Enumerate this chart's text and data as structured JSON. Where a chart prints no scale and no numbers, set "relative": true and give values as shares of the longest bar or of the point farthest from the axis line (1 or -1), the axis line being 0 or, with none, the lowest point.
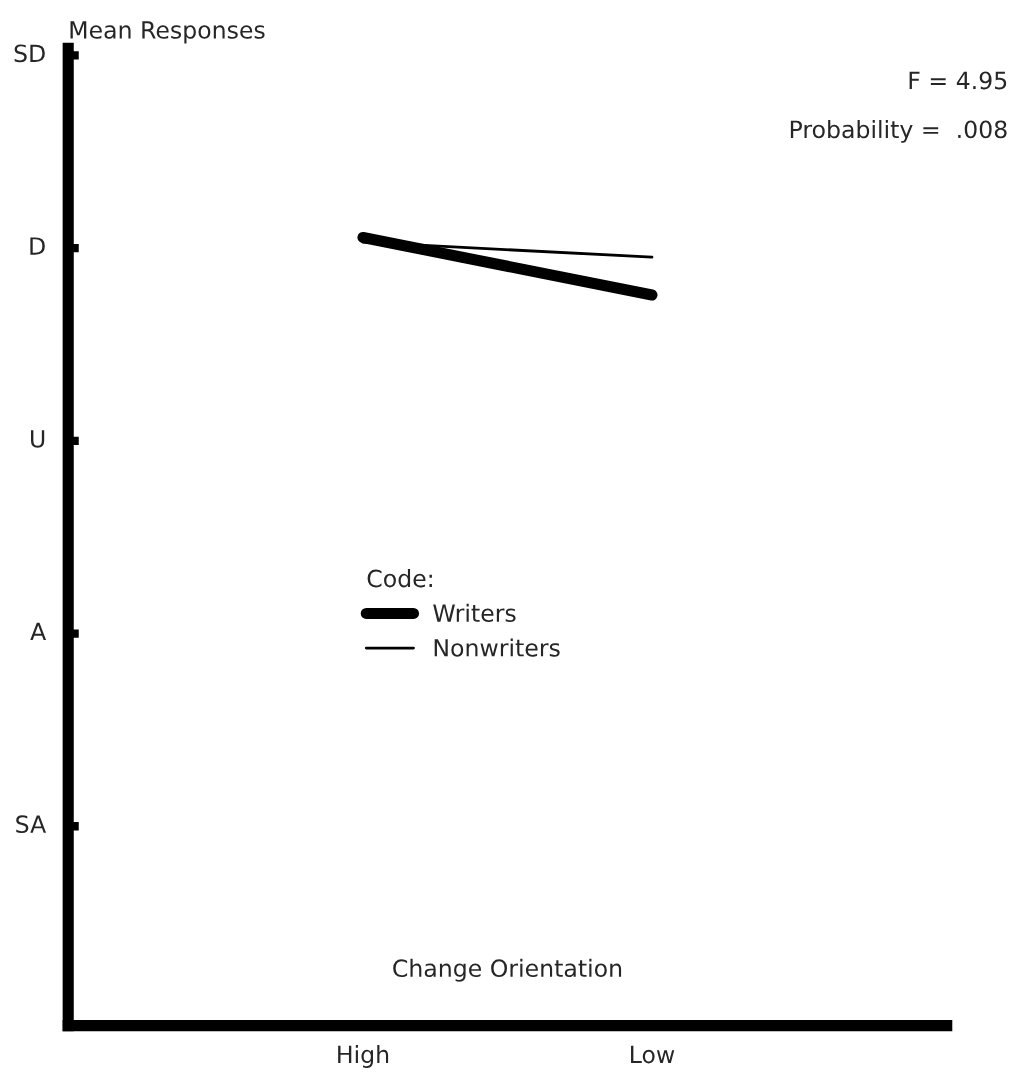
{
  "chart_data": {
    "type": "line",
    "relative": true,
    "xlabel": "Change Orientation",
    "categories": [
      "High",
      "Low"
    ],
    "series": [
      {
        "name": "Writers",
        "color": "#000000",
        "values": [
          1,
          0.927
        ]
      },
      {
        "name": "Nonwriters",
        "color": "#000000",
        "values": [
          0.994,
          0.975
        ]
      }
    ],
    "legend_title": "Code:",
    "legend": "center",
    "grid": false,
    "annotations": [
      "SD",
      "D",
      "U",
      "A",
      "SA",
      "Mean Responses",
      "F = 4.95",
      "Probability =  .008"
    ]
  }
}
